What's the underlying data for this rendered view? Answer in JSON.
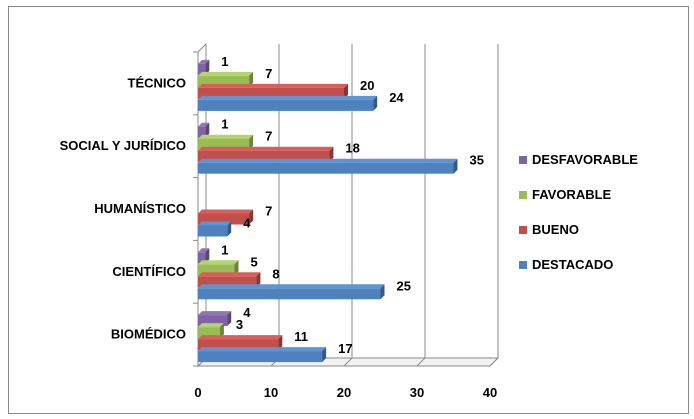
{
  "chart_data": {
    "type": "bar",
    "orientation": "horizontal",
    "style": "3d",
    "categories": [
      "BIOMÉDICO",
      "CIENTÍFICO",
      "HUMANÍSTICO",
      "SOCIAL Y JURÍDICO",
      "TÉCNICO"
    ],
    "series": [
      {
        "name": "DESFAVORABLE",
        "color": "#8064A2",
        "values": [
          4,
          1,
          null,
          1,
          1
        ]
      },
      {
        "name": "FAVORABLE",
        "color": "#9BBB59",
        "values": [
          3,
          5,
          null,
          7,
          7
        ]
      },
      {
        "name": "BUENO",
        "color": "#C0504D",
        "values": [
          11,
          8,
          7,
          18,
          20
        ]
      },
      {
        "name": "DESTACADO",
        "color": "#4F81BD",
        "values": [
          17,
          25,
          4,
          35,
          24
        ]
      }
    ],
    "data_labels": {
      "DESFAVORABLE": [
        "4",
        "1",
        "",
        "1",
        "1"
      ],
      "FAVORABLE": [
        "3",
        "5",
        "",
        "7",
        "7"
      ],
      "BUENO": [
        "11",
        "8",
        "7",
        "18",
        "20"
      ],
      "DESTACADO": [
        "17",
        "25",
        "4",
        "35",
        "24"
      ]
    },
    "xlim": [
      0,
      40
    ],
    "ticks": [
      "0",
      "10",
      "20",
      "30",
      "40"
    ],
    "grid": true,
    "legend_position": "right",
    "title": "",
    "xlabel": "",
    "ylabel": ""
  }
}
